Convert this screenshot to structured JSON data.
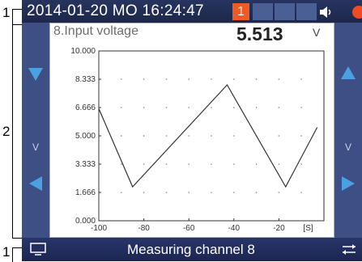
{
  "callouts": {
    "status_bar": "1",
    "display_area": "2",
    "bottom_bar": "1"
  },
  "status": {
    "datetime": "2014-01-20 MO 16:24:47",
    "notification_count": "1",
    "speaker_icon": "speaker-icon",
    "record_icon": "record-dot-icon"
  },
  "measurement": {
    "title": "8.Input voltage",
    "value": "5.513",
    "unit": "V",
    "side_unit": "V",
    "side_unit_right": "V"
  },
  "bottom": {
    "label": "Measuring channel 8",
    "left_icon": "monitor-icon",
    "right_icon": "swap-arrows-icon"
  },
  "colors": {
    "accent": "#f25a22",
    "bar": "#1d2749",
    "side": "#3d4f85",
    "arrow": "#4aa0e0"
  },
  "chart_data": {
    "type": "line",
    "xlim": [
      -100,
      0
    ],
    "ylim": [
      0,
      10
    ],
    "xticks": [
      "-100",
      "-80",
      "-60",
      "-40",
      "-20"
    ],
    "xunit": "[S]",
    "yticks": [
      "0.000",
      "1.666",
      "3.333",
      "5.000",
      "6.666",
      "8.333",
      "10.000"
    ],
    "grid": true,
    "series": [
      {
        "x": [
          -100,
          -85,
          -43,
          -17,
          -3
        ],
        "y": [
          6.6,
          2.0,
          8.0,
          2.0,
          5.5
        ]
      }
    ]
  }
}
